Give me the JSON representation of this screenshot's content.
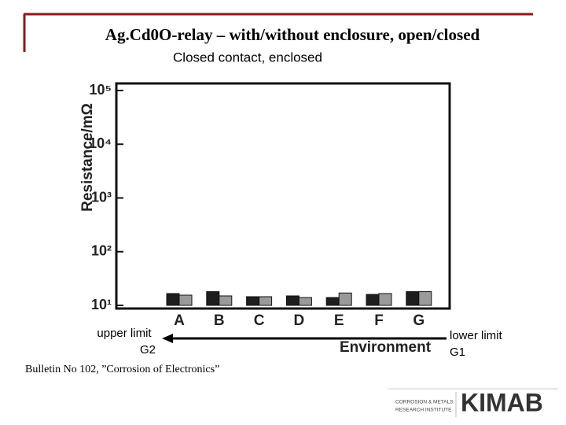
{
  "slide": {
    "title": "Ag.Cd0O-relay – with/without enclosure, open/closed",
    "source": "Bulletin No 102, ”Corrosion of Electronics”",
    "logo_lines": [
      "CORROSION & METALS",
      "RESEARCH INSTITUTE"
    ],
    "logo_name": "KIMAB"
  },
  "chart_data": {
    "type": "bar",
    "title": "Closed contact, enclosed",
    "y_label": "Resistance/mΩ",
    "x_label": "Environment",
    "categories": [
      "A",
      "B",
      "C",
      "D",
      "E",
      "F",
      "G"
    ],
    "series": [
      {
        "color": "#1e1e1e",
        "values": [
          16.6,
          18,
          14.5,
          15,
          14,
          16,
          18
        ]
      },
      {
        "color": "#9a9a9a",
        "values": [
          15.5,
          15,
          14.5,
          14,
          17,
          16.6,
          18
        ]
      }
    ],
    "log_scale": true,
    "ylim": [
      10,
      100000
    ],
    "yticks": [
      {
        "value": 10,
        "label": "10¹"
      },
      {
        "value": 100,
        "label": "10²"
      },
      {
        "value": 1000,
        "label": "10³"
      },
      {
        "value": 10000,
        "label": "10⁴"
      },
      {
        "value": 100000,
        "label": "10⁵"
      }
    ],
    "annotations": [
      "upper limit",
      "G2",
      "lower limit",
      "G1"
    ]
  }
}
